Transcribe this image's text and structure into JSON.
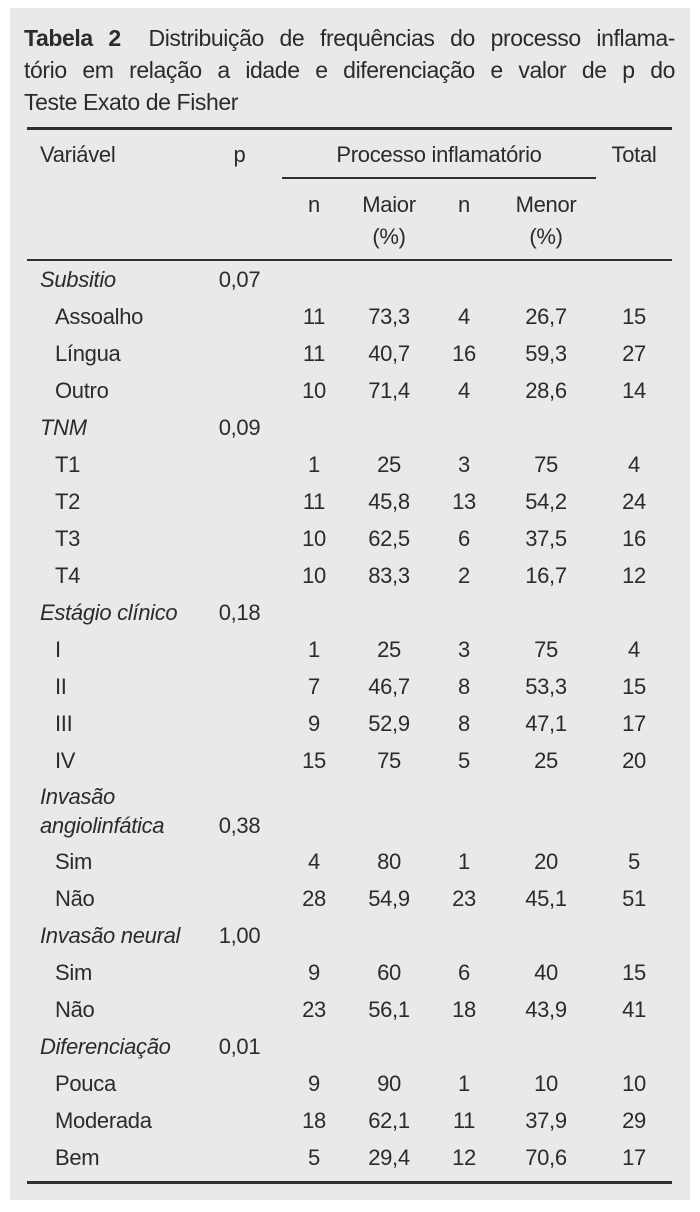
{
  "colors": {
    "panel_bg": "#e8e9e9",
    "text": "#2b2b2b",
    "rule": "#2f2f2f"
  },
  "caption": {
    "label": "Tabela 2",
    "line1_rest": "Distribuição de frequências do processo inflama-",
    "line2": "tório em relação a idade e diferenciação e valor de p do",
    "line3": "Teste Exato de Fisher"
  },
  "table": {
    "header": {
      "variable": "Variável",
      "p": "p",
      "group": "Processo inflamatório",
      "total": "Total",
      "sub_n1": "n",
      "sub_maior": "Maior",
      "sub_pct1": "(%)",
      "sub_n2": "n",
      "sub_menor": "Menor",
      "sub_pct2": "(%)"
    },
    "rows": [
      {
        "style": "section",
        "label": "Subsitio",
        "p": "0,07",
        "n1": "",
        "maior": "",
        "n2": "",
        "menor": "",
        "total": ""
      },
      {
        "style": "item",
        "label": "Assoalho",
        "p": "",
        "n1": "11",
        "maior": "73,3",
        "n2": "4",
        "menor": "26,7",
        "total": "15"
      },
      {
        "style": "item",
        "label": "Língua",
        "p": "",
        "n1": "11",
        "maior": "40,7",
        "n2": "16",
        "menor": "59,3",
        "total": "27"
      },
      {
        "style": "item",
        "label": "Outro",
        "p": "",
        "n1": "10",
        "maior": "71,4",
        "n2": "4",
        "menor": "28,6",
        "total": "14"
      },
      {
        "style": "section",
        "label": "TNM",
        "p": "0,09",
        "n1": "",
        "maior": "",
        "n2": "",
        "menor": "",
        "total": ""
      },
      {
        "style": "item",
        "label": "T1",
        "p": "",
        "n1": "1",
        "maior": "25",
        "n2": "3",
        "menor": "75",
        "total": "4"
      },
      {
        "style": "item",
        "label": "T2",
        "p": "",
        "n1": "11",
        "maior": "45,8",
        "n2": "13",
        "menor": "54,2",
        "total": "24"
      },
      {
        "style": "item",
        "label": "T3",
        "p": "",
        "n1": "10",
        "maior": "62,5",
        "n2": "6",
        "menor": "37,5",
        "total": "16"
      },
      {
        "style": "item",
        "label": "T4",
        "p": "",
        "n1": "10",
        "maior": "83,3",
        "n2": "2",
        "menor": "16,7",
        "total": "12"
      },
      {
        "style": "section",
        "label": "Estágio clínico",
        "p": "0,18",
        "n1": "",
        "maior": "",
        "n2": "",
        "menor": "",
        "total": ""
      },
      {
        "style": "item",
        "label": "I",
        "p": "",
        "n1": "1",
        "maior": "25",
        "n2": "3",
        "menor": "75",
        "total": "4"
      },
      {
        "style": "item",
        "label": "II",
        "p": "",
        "n1": "7",
        "maior": "46,7",
        "n2": "8",
        "menor": "53,3",
        "total": "15"
      },
      {
        "style": "item",
        "label": "III",
        "p": "",
        "n1": "9",
        "maior": "52,9",
        "n2": "8",
        "menor": "47,1",
        "total": "17"
      },
      {
        "style": "item",
        "label": "IV",
        "p": "",
        "n1": "15",
        "maior": "75",
        "n2": "5",
        "menor": "25",
        "total": "20"
      },
      {
        "style": "section-tall",
        "label": "Invasão angiolinfática",
        "p": "0,38",
        "n1": "",
        "maior": "",
        "n2": "",
        "menor": "",
        "total": ""
      },
      {
        "style": "item",
        "label": "Sim",
        "p": "",
        "n1": "4",
        "maior": "80",
        "n2": "1",
        "menor": "20",
        "total": "5"
      },
      {
        "style": "item",
        "label": "Não",
        "p": "",
        "n1": "28",
        "maior": "54,9",
        "n2": "23",
        "menor": "45,1",
        "total": "51"
      },
      {
        "style": "section",
        "label": "Invasão neural",
        "p": "1,00",
        "n1": "",
        "maior": "",
        "n2": "",
        "menor": "",
        "total": ""
      },
      {
        "style": "item",
        "label": "Sim",
        "p": "",
        "n1": "9",
        "maior": "60",
        "n2": "6",
        "menor": "40",
        "total": "15"
      },
      {
        "style": "item",
        "label": "Não",
        "p": "",
        "n1": "23",
        "maior": "56,1",
        "n2": "18",
        "menor": "43,9",
        "total": "41"
      },
      {
        "style": "section",
        "label": "Diferenciação",
        "p": "0,01",
        "n1": "",
        "maior": "",
        "n2": "",
        "menor": "",
        "total": ""
      },
      {
        "style": "item",
        "label": "Pouca",
        "p": "",
        "n1": "9",
        "maior": "90",
        "n2": "1",
        "menor": "10",
        "total": "10"
      },
      {
        "style": "item",
        "label": "Moderada",
        "p": "",
        "n1": "18",
        "maior": "62,1",
        "n2": "11",
        "menor": "37,9",
        "total": "29"
      },
      {
        "style": "item",
        "label": "Bem",
        "p": "",
        "n1": "5",
        "maior": "29,4",
        "n2": "12",
        "menor": "70,6",
        "total": "17"
      }
    ]
  }
}
